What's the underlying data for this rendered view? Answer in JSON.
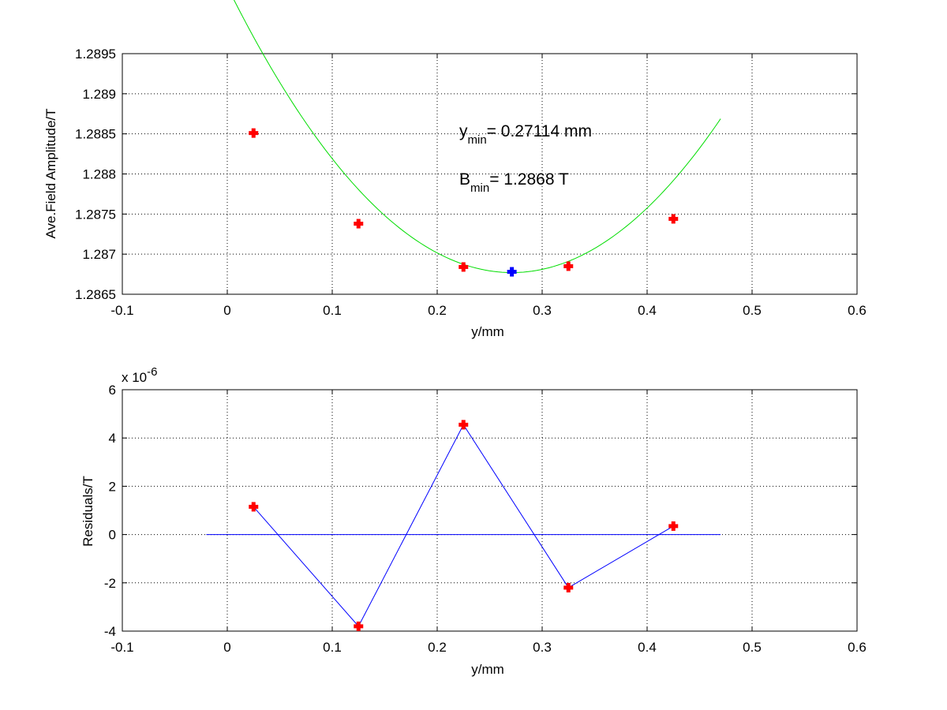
{
  "colors": {
    "fit_curve": "#00dd00",
    "data_marker": "#ff0000",
    "min_marker": "#0000ff",
    "residual_line": "#0000ff",
    "zero_line": "#0000ff",
    "grid": "#000000"
  },
  "chart_data": [
    {
      "type": "scatter",
      "xlabel": "y/mm",
      "ylabel": "Ave.Field Amplitude/T",
      "xlim": [
        -0.1,
        0.6
      ],
      "ylim": [
        1.2865,
        1.2895
      ],
      "xticks": [
        "-0.1",
        "0",
        "0.1",
        "0.2",
        "0.3",
        "0.4",
        "0.5",
        "0.6"
      ],
      "yticks": [
        "1.2865",
        "1.287",
        "1.2875",
        "1.288",
        "1.2885",
        "1.289",
        "1.2895"
      ],
      "grid": true,
      "fit": {
        "x_range": [
          -0.02,
          0.47
        ],
        "vertex_x": 0.27114,
        "vertex_y": 1.28677,
        "curvature": 0.0485
      },
      "series": [
        {
          "x": [
            0.025,
            0.125,
            0.225,
            0.325,
            0.425
          ],
          "y": [
            1.28851,
            1.28738,
            1.28684,
            1.28685,
            1.28744
          ]
        },
        {
          "x": [
            0.27114
          ],
          "y": [
            1.28678
          ]
        }
      ],
      "annotations": [
        {
          "main": "y",
          "sub": "min",
          "text": "= 0.27114 mm"
        },
        {
          "main": "B",
          "sub": "min",
          "text": "= 1.2868 T"
        }
      ]
    },
    {
      "type": "line",
      "xlabel": "y/mm",
      "ylabel": "Residuals/T",
      "xlim": [
        -0.1,
        0.6
      ],
      "ylim": [
        -4,
        6
      ],
      "xticks": [
        "-0.1",
        "0",
        "0.1",
        "0.2",
        "0.3",
        "0.4",
        "0.5",
        "0.6"
      ],
      "yticks": [
        "-4",
        "-2",
        "0",
        "2",
        "4",
        "6"
      ],
      "scale_label": {
        "base": "x 10",
        "exponent": "-6"
      },
      "grid": true,
      "zero_line_x_range": [
        -0.02,
        0.47
      ],
      "series": [
        {
          "x": [
            0.025,
            0.125,
            0.225,
            0.325,
            0.425
          ],
          "y": [
            1.15,
            -3.8,
            4.55,
            -2.2,
            0.35
          ]
        }
      ]
    }
  ]
}
